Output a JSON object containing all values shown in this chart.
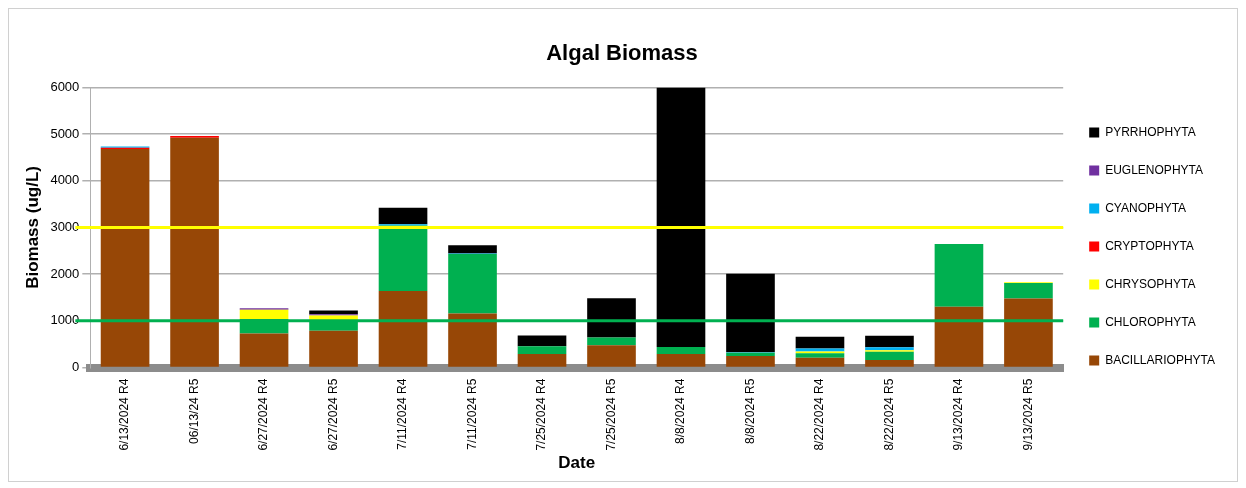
{
  "chart_data": {
    "type": "bar",
    "title": "Algal Biomass",
    "xlabel": "Date",
    "ylabel": "Biomass (ug/L)",
    "categories": [
      "6/13/2024 R4",
      "06/13/24 R5",
      "6/27/2024 R4",
      "6/27/2024 R5",
      "7/11/2024 R4",
      "7/11/2024 R5",
      "7/25/2024 R4",
      "7/25/2024 R5",
      "8/8/2024 R4",
      "8/8/2024 R5",
      "8/22/2024 R4",
      "8/22/2024 R5",
      "9/13/2024 R4",
      "9/13/2024 R5"
    ],
    "stacked": true,
    "series": [
      {
        "name": "BACILLARIOPHYTA",
        "color": "#974706",
        "values": [
          4680,
          4920,
          730,
          790,
          1640,
          1160,
          290,
          480,
          290,
          245,
          210,
          160,
          1300,
          1480
        ]
      },
      {
        "name": "CHLOROPHYTA",
        "color": "#00b050",
        "values": [
          0,
          0,
          310,
          230,
          1400,
          1270,
          165,
          165,
          150,
          70,
          95,
          180,
          1345,
          330
        ]
      },
      {
        "name": "CHRYSOPHYTA",
        "color": "#ffff00",
        "values": [
          0,
          0,
          200,
          95,
          0,
          0,
          0,
          0,
          0,
          0,
          40,
          30,
          0,
          15
        ]
      },
      {
        "name": "CRYPTOPHYTA",
        "color": "#ff0000",
        "values": [
          30,
          40,
          0,
          0,
          0,
          0,
          0,
          0,
          0,
          0,
          0,
          0,
          0,
          0
        ]
      },
      {
        "name": "CYANOPHYTA",
        "color": "#00b0f0",
        "values": [
          25,
          0,
          0,
          0,
          30,
          15,
          0,
          0,
          0,
          15,
          65,
          65,
          0,
          0
        ]
      },
      {
        "name": "EUGLENOPHYTA",
        "color": "#7030a0",
        "values": [
          0,
          0,
          30,
          25,
          0,
          0,
          0,
          0,
          0,
          0,
          0,
          0,
          0,
          0
        ]
      },
      {
        "name": "PYRRHOPHYTA",
        "color": "#000000",
        "values": [
          0,
          0,
          0,
          80,
          350,
          175,
          230,
          840,
          5560,
          1680,
          250,
          245,
          0,
          0
        ]
      }
    ],
    "ylim": [
      0,
      6000
    ],
    "yticks": [
      0,
      1000,
      2000,
      3000,
      4000,
      5000,
      6000
    ],
    "ref_lines": [
      {
        "axis": "y",
        "value": 3000,
        "color": "#ffff00"
      },
      {
        "axis": "y",
        "value": 1000,
        "color": "#00b050"
      }
    ],
    "grid": "y",
    "legend": "right"
  }
}
